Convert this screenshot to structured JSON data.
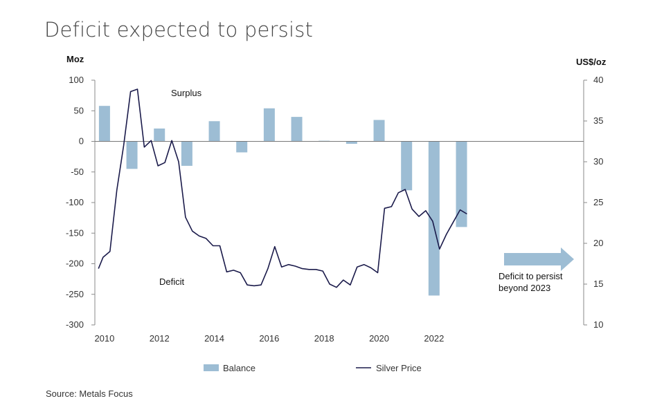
{
  "title": "Deficit expected to persist",
  "source": "Source: Metals Focus",
  "chart_data": {
    "type": "bar",
    "left_axis": {
      "label": "Moz",
      "ylim": [
        -300,
        100
      ],
      "ticks": [
        100,
        50,
        0,
        -50,
        -100,
        -150,
        -200,
        -250,
        -300
      ]
    },
    "right_axis": {
      "label": "US$/oz",
      "ylim": [
        10,
        40
      ],
      "ticks": [
        40,
        35,
        30,
        25,
        20,
        15,
        10
      ]
    },
    "x_ticks": [
      2010,
      2012,
      2014,
      2016,
      2018,
      2020,
      2022
    ],
    "xlim": [
      2009.7,
      2027.5
    ],
    "grid": false,
    "legend_position": "bottom",
    "series": [
      {
        "name": "Balance",
        "type": "bar",
        "color": "#9dbdd4",
        "x": [
          2010,
          2011,
          2012,
          2013,
          2014,
          2015,
          2016,
          2017,
          2018,
          2019,
          2020,
          2021,
          2022,
          2023
        ],
        "values": [
          58,
          -45,
          21,
          -40,
          33,
          -18,
          54,
          40,
          1,
          -4,
          35,
          -80,
          -252,
          -140
        ]
      },
      {
        "name": "Silver Price",
        "type": "line",
        "color": "#1a1a4a",
        "x": [
          2009.83,
          2010.0,
          2010.25,
          2010.5,
          2010.75,
          2011.0,
          2011.25,
          2011.5,
          2011.75,
          2012.0,
          2012.25,
          2012.5,
          2012.75,
          2013.0,
          2013.25,
          2013.5,
          2013.75,
          2014.0,
          2014.25,
          2014.5,
          2014.75,
          2015.0,
          2015.25,
          2015.5,
          2015.75,
          2016.0,
          2016.25,
          2016.5,
          2016.75,
          2017.0,
          2017.25,
          2017.5,
          2017.75,
          2018.0,
          2018.25,
          2018.5,
          2018.75,
          2019.0,
          2019.25,
          2019.5,
          2019.75,
          2020.0,
          2020.25,
          2020.5,
          2020.75,
          2021.0,
          2021.25,
          2021.5,
          2021.75,
          2022.0,
          2022.25,
          2022.5,
          2022.75,
          2023.0,
          2023.25
        ],
        "values": [
          16.9,
          18.3,
          19.0,
          26.5,
          32.0,
          38.6,
          38.9,
          31.8,
          32.6,
          29.5,
          29.9,
          32.6,
          30.0,
          23.2,
          21.5,
          20.9,
          20.6,
          19.7,
          19.7,
          16.5,
          16.7,
          16.4,
          14.9,
          14.8,
          14.9,
          16.9,
          19.6,
          17.1,
          17.4,
          17.2,
          16.9,
          16.8,
          16.8,
          16.6,
          15.0,
          14.6,
          15.5,
          14.9,
          17.1,
          17.4,
          17.0,
          16.4,
          24.3,
          24.5,
          26.2,
          26.6,
          24.2,
          23.3,
          24.0,
          22.7,
          19.3,
          21.1,
          22.6,
          24.1,
          23.6
        ]
      }
    ],
    "annotations": [
      {
        "text": "Surplus"
      },
      {
        "text": "Deficit"
      },
      {
        "text": "Deficit to persist beyond 2023"
      }
    ]
  }
}
